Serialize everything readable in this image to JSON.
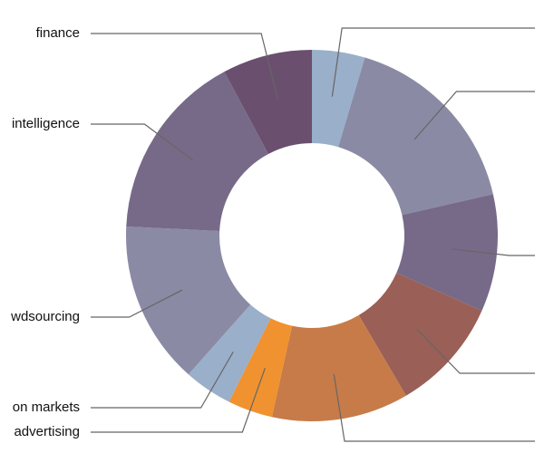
{
  "chart_data": {
    "type": "donut",
    "categories": [
      null,
      null,
      null,
      null,
      null,
      "advertising",
      "on markets",
      "wdsourcing",
      "intelligence",
      "finance"
    ],
    "values": [
      4.6,
      16.8,
      10.2,
      9.9,
      11.9,
      3.9,
      4.2,
      14.2,
      16.4,
      7.8
    ],
    "colors": [
      "#9aafc9",
      "#8a8aa5",
      "#776a88",
      "#9a5f56",
      "#c77b48",
      "#f0922f",
      "#9aafc9",
      "#8a8aa5",
      "#776a88",
      "#6a4f6e"
    ]
  }
}
